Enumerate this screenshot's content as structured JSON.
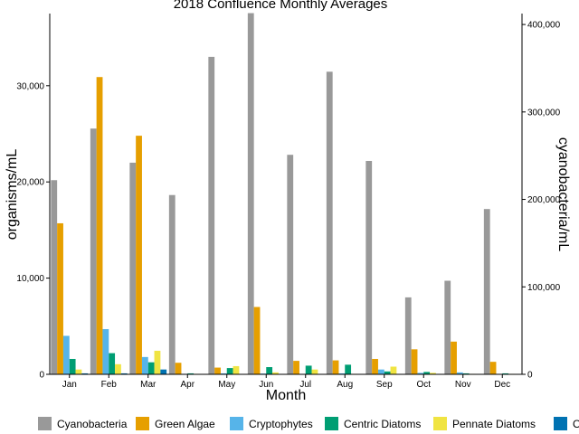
{
  "chart_data": {
    "type": "bar",
    "title": "2018 Confluence Monthly Averages",
    "xlabel": "Month",
    "ylabel": "organisms/mL",
    "y2label": "cyanobacteria/mL",
    "categories": [
      "Jan",
      "Feb",
      "Mar",
      "Apr",
      "May",
      "Jun",
      "Jul",
      "Aug",
      "Sep",
      "Oct",
      "Nov",
      "Dec"
    ],
    "ylim": [
      0,
      37500
    ],
    "y2lim": [
      0,
      412500
    ],
    "yticks": [
      0,
      10000,
      20000,
      30000
    ],
    "ytick_labels": [
      "0",
      "10,000",
      "20,000",
      "30,000"
    ],
    "y2ticks": [
      0,
      100000,
      200000,
      300000,
      400000
    ],
    "y2tick_labels": [
      "0",
      "100,000",
      "200,000",
      "300,000",
      "400,000"
    ],
    "grid": false,
    "legend_position": "bottom",
    "series": [
      {
        "name": "Cyanobacteria",
        "color": "#999999",
        "axis": "right",
        "values": [
          222000,
          281000,
          242000,
          205000,
          363000,
          413000,
          251000,
          346000,
          244000,
          88000,
          107000,
          189000
        ]
      },
      {
        "name": "Green Algae",
        "color": "#E69F00",
        "axis": "left",
        "values": [
          15700,
          30900,
          24800,
          1200,
          700,
          7000,
          1400,
          1450,
          1600,
          2600,
          3400,
          1300
        ]
      },
      {
        "name": "Cryptophytes",
        "color": "#56B4E9",
        "axis": "left",
        "values": [
          4000,
          4700,
          1800,
          50,
          100,
          80,
          50,
          100,
          500,
          150,
          200,
          50
        ]
      },
      {
        "name": "Centric Diatoms",
        "color": "#009E73",
        "axis": "left",
        "values": [
          1600,
          2200,
          1250,
          100,
          650,
          750,
          900,
          1000,
          300,
          250,
          100,
          100
        ]
      },
      {
        "name": "Pennate Diatoms",
        "color": "#F0E442",
        "axis": "left",
        "values": [
          500,
          1050,
          2450,
          50,
          850,
          200,
          500,
          50,
          800,
          150,
          50,
          50
        ]
      },
      {
        "name": "Other",
        "color": "#0072B2",
        "axis": "left",
        "values": [
          100,
          100,
          500,
          20,
          20,
          20,
          20,
          20,
          20,
          20,
          20,
          20
        ]
      }
    ]
  }
}
